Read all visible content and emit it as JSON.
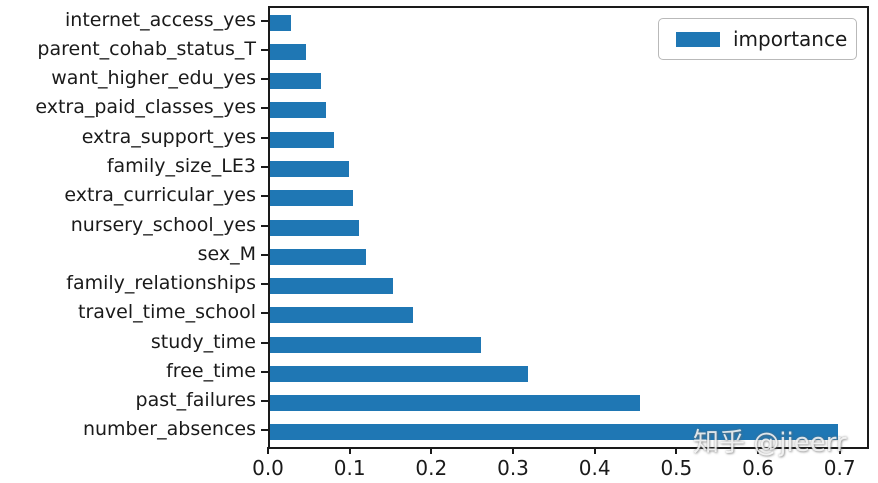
{
  "chart_data": {
    "type": "bar",
    "orientation": "horizontal",
    "title": "",
    "xlabel": "",
    "ylabel": "",
    "categories": [
      "internet_access_yes",
      "parent_cohab_status_T",
      "want_higher_edu_yes",
      "extra_paid_classes_yes",
      "extra_support_yes",
      "family_size_LE3",
      "extra_curricular_yes",
      "nursery_school_yes",
      "sex_M",
      "family_relationships",
      "travel_time_school",
      "study_time",
      "free_time",
      "past_failures",
      "number_absences"
    ],
    "series": [
      {
        "name": "importance",
        "values": [
          0.026,
          0.044,
          0.062,
          0.069,
          0.078,
          0.097,
          0.102,
          0.109,
          0.117,
          0.15,
          0.175,
          0.258,
          0.316,
          0.453,
          0.696
        ]
      }
    ],
    "xlim": [
      0,
      0.731
    ],
    "xticks": [
      "0.0",
      "0.1",
      "0.2",
      "0.3",
      "0.4",
      "0.5",
      "0.6",
      "0.7"
    ],
    "grid": false,
    "legend_position": "upper right",
    "bar_color": "#1f77b4",
    "axis_color": "#1a1a1a"
  },
  "legend": {
    "label": "importance"
  },
  "watermark": "知乎 @jieerr"
}
